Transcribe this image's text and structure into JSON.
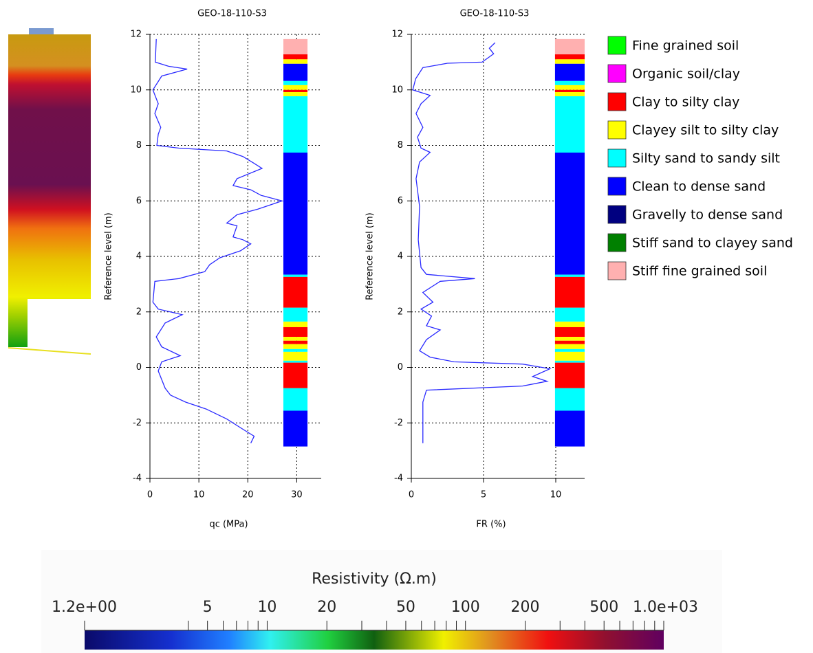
{
  "chart_data": [
    {
      "type": "line",
      "title": "GEO-18-110-S3",
      "x_label": "qc (MPa)",
      "y_label": "Reference level (m)",
      "color": "#2a2aff",
      "grid": true,
      "xlim": [
        0,
        35
      ],
      "xticks": [
        0,
        10,
        20,
        30
      ],
      "ylim": [
        -4,
        12
      ],
      "yticks": [
        -4,
        -2,
        0,
        2,
        4,
        6,
        8,
        10,
        12
      ],
      "x": [
        1.3,
        1.1,
        3.8,
        7.6,
        2.4,
        0.6,
        1.7,
        1.0,
        2.2,
        1.7,
        1.4,
        5.9,
        15.7,
        19,
        21.3,
        22.9,
        17.8,
        17,
        20.6,
        22.7,
        27,
        22,
        17.8,
        15.7,
        17.8,
        17,
        19,
        20.6,
        18.5,
        14.3,
        12.2,
        11.2,
        5.9,
        1.0,
        0.6,
        1.7,
        6.6,
        3.1,
        1.3,
        2.4,
        6.2,
        2.4,
        1.7,
        3.1,
        4.2,
        7.3,
        11.5,
        15.7,
        19,
        21.3,
        20.6
      ],
      "y": [
        11.83,
        11.0,
        10.85,
        10.75,
        10.5,
        10.0,
        9.5,
        9.15,
        8.65,
        8.4,
        8.0,
        7.9,
        7.8,
        7.6,
        7.35,
        7.17,
        6.8,
        6.55,
        6.4,
        6.2,
        6.0,
        5.7,
        5.5,
        5.2,
        5.1,
        4.7,
        4.6,
        4.45,
        4.2,
        3.95,
        3.7,
        3.45,
        3.2,
        3.1,
        2.35,
        2.1,
        1.9,
        1.6,
        1.1,
        0.74,
        0.42,
        0.2,
        -0.13,
        -0.75,
        -1.0,
        -1.25,
        -1.5,
        -1.86,
        -2.23,
        -2.48,
        -2.73
      ],
      "soil_layers": [
        {
          "top": 11.83,
          "bottom": 11.28,
          "color": "#ffb0b0"
        },
        {
          "top": 11.28,
          "bottom": 11.1,
          "color": "#ff0000"
        },
        {
          "top": 11.1,
          "bottom": 10.94,
          "color": "#ffff00"
        },
        {
          "top": 10.94,
          "bottom": 10.32,
          "color": "#0000ff"
        },
        {
          "top": 10.32,
          "bottom": 10.17,
          "color": "#00ffff"
        },
        {
          "top": 10.17,
          "bottom": 10.0,
          "color": "#ffff00"
        },
        {
          "top": 10.0,
          "bottom": 9.92,
          "color": "#ff0000"
        },
        {
          "top": 9.92,
          "bottom": 9.77,
          "color": "#ffff00"
        },
        {
          "top": 9.77,
          "bottom": 7.74,
          "color": "#00ffff"
        },
        {
          "top": 7.74,
          "bottom": 3.34,
          "color": "#0000ff"
        },
        {
          "top": 3.34,
          "bottom": 3.26,
          "color": "#00ffff"
        },
        {
          "top": 3.26,
          "bottom": 2.15,
          "color": "#ff0000"
        },
        {
          "top": 2.15,
          "bottom": 1.65,
          "color": "#00ffff"
        },
        {
          "top": 1.65,
          "bottom": 1.45,
          "color": "#ffff00"
        },
        {
          "top": 1.45,
          "bottom": 1.1,
          "color": "#ff0000"
        },
        {
          "top": 1.1,
          "bottom": 0.96,
          "color": "#ffff00"
        },
        {
          "top": 0.96,
          "bottom": 0.84,
          "color": "#ff0000"
        },
        {
          "top": 0.84,
          "bottom": 0.66,
          "color": "#ffff00"
        },
        {
          "top": 0.66,
          "bottom": 0.56,
          "color": "#00ffff"
        },
        {
          "top": 0.56,
          "bottom": 0.24,
          "color": "#ffff00"
        },
        {
          "top": 0.24,
          "bottom": 0.17,
          "color": "#00ffff"
        },
        {
          "top": 0.17,
          "bottom": -0.75,
          "color": "#ff0000"
        },
        {
          "top": -0.75,
          "bottom": -1.56,
          "color": "#00ffff"
        },
        {
          "top": -1.56,
          "bottom": -2.85,
          "color": "#0000ff"
        }
      ]
    },
    {
      "type": "line",
      "title": "GEO-18-110-S3",
      "x_label": "FR (%)",
      "y_label": "Reference level (m)",
      "color": "#2a2aff",
      "grid": true,
      "xlim": [
        0,
        12
      ],
      "xticks": [
        0,
        5,
        10
      ],
      "ylim": [
        -4,
        12
      ],
      "yticks": [
        -4,
        -2,
        0,
        2,
        4,
        6,
        8,
        10,
        12
      ],
      "x": [
        5.8,
        5.4,
        5.7,
        4.9,
        2.5,
        0.8,
        0.3,
        0.1,
        1.3,
        0.67,
        0.33,
        0.8,
        0.43,
        0.67,
        1.3,
        0.57,
        0.33,
        0.57,
        0.48,
        0.67,
        1.05,
        4.4,
        2.0,
        0.8,
        1.5,
        0.67,
        1.4,
        1.05,
        2.0,
        1.05,
        0.57,
        1.3,
        2.95,
        7.7,
        9.6,
        8.4,
        9.4,
        7.7,
        1.05,
        0.8,
        0.8
      ],
      "y": [
        11.7,
        11.5,
        11.3,
        11.0,
        10.96,
        10.8,
        10.4,
        10.0,
        9.8,
        9.5,
        9.15,
        8.65,
        8.3,
        7.9,
        7.75,
        7.4,
        6.8,
        5.8,
        4.6,
        3.6,
        3.35,
        3.2,
        3.1,
        2.7,
        2.35,
        2.1,
        1.85,
        1.5,
        1.35,
        1.0,
        0.6,
        0.37,
        0.2,
        0.12,
        -0.05,
        -0.33,
        -0.5,
        -0.67,
        -0.82,
        -1.25,
        -2.73
      ],
      "soil_layers": [
        {
          "top": 11.83,
          "bottom": 11.28,
          "color": "#ffb0b0"
        },
        {
          "top": 11.28,
          "bottom": 11.1,
          "color": "#ff0000"
        },
        {
          "top": 11.1,
          "bottom": 10.94,
          "color": "#ffff00"
        },
        {
          "top": 10.94,
          "bottom": 10.32,
          "color": "#0000ff"
        },
        {
          "top": 10.32,
          "bottom": 10.17,
          "color": "#00ffff"
        },
        {
          "top": 10.17,
          "bottom": 10.0,
          "color": "#ffff00"
        },
        {
          "top": 10.0,
          "bottom": 9.92,
          "color": "#ff0000"
        },
        {
          "top": 9.92,
          "bottom": 9.77,
          "color": "#ffff00"
        },
        {
          "top": 9.77,
          "bottom": 7.74,
          "color": "#00ffff"
        },
        {
          "top": 7.74,
          "bottom": 3.34,
          "color": "#0000ff"
        },
        {
          "top": 3.34,
          "bottom": 3.26,
          "color": "#00ffff"
        },
        {
          "top": 3.26,
          "bottom": 2.15,
          "color": "#ff0000"
        },
        {
          "top": 2.15,
          "bottom": 1.65,
          "color": "#00ffff"
        },
        {
          "top": 1.65,
          "bottom": 1.45,
          "color": "#ffff00"
        },
        {
          "top": 1.45,
          "bottom": 1.1,
          "color": "#ff0000"
        },
        {
          "top": 1.1,
          "bottom": 0.96,
          "color": "#ffff00"
        },
        {
          "top": 0.96,
          "bottom": 0.84,
          "color": "#ff0000"
        },
        {
          "top": 0.84,
          "bottom": 0.66,
          "color": "#ffff00"
        },
        {
          "top": 0.66,
          "bottom": 0.56,
          "color": "#00ffff"
        },
        {
          "top": 0.56,
          "bottom": 0.24,
          "color": "#ffff00"
        },
        {
          "top": 0.24,
          "bottom": 0.17,
          "color": "#00ffff"
        },
        {
          "top": 0.17,
          "bottom": -0.75,
          "color": "#ff0000"
        },
        {
          "top": -0.75,
          "bottom": -1.56,
          "color": "#00ffff"
        },
        {
          "top": -1.56,
          "bottom": -2.85,
          "color": "#0000ff"
        }
      ]
    }
  ],
  "legend": [
    {
      "name": "Fine grained soil",
      "color": "#00ff00"
    },
    {
      "name": "Organic soil/clay",
      "color": "#ff00ff"
    },
    {
      "name": "Clay to silty clay",
      "color": "#ff0000"
    },
    {
      "name": "Clayey silt to silty clay",
      "color": "#ffff00"
    },
    {
      "name": "Silty sand to sandy silt",
      "color": "#00ffff"
    },
    {
      "name": "Clean to dense sand",
      "color": "#0000ff"
    },
    {
      "name": "Gravelly to dense sand",
      "color": "#000080"
    },
    {
      "name": "Stiff sand to clayey sand",
      "color": "#008000"
    },
    {
      "name": "Stiff fine grained soil",
      "color": "#ffb0b0"
    }
  ],
  "colorbar": {
    "title": "Resistivity (Ω.m)",
    "scale": "log",
    "lim": [
      1.2,
      1000
    ],
    "ticks": [
      {
        "value": 1.2,
        "label": "1.2e+00"
      },
      5,
      10,
      20,
      50,
      100,
      200,
      500,
      {
        "value": 1000,
        "label": "1.0e+03"
      }
    ],
    "minor_ticks": [
      4,
      6,
      7,
      8,
      9,
      30,
      40,
      60,
      70,
      80,
      90,
      300,
      400,
      600,
      700,
      800,
      900
    ]
  }
}
